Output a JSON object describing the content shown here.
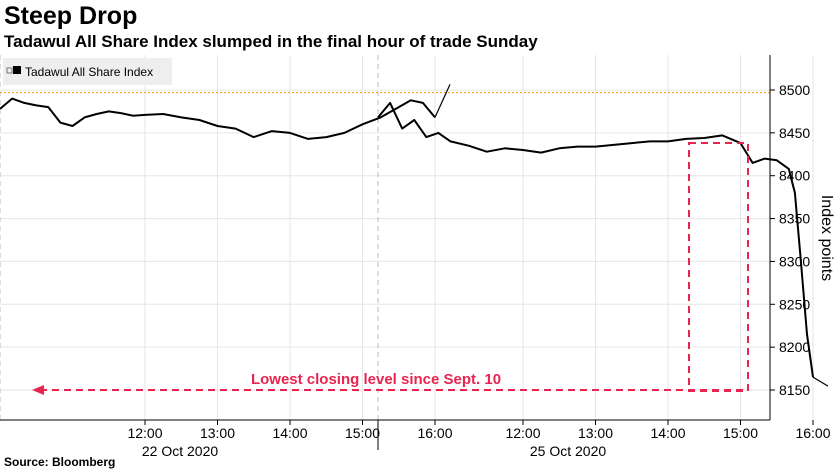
{
  "chart_data": {
    "type": "line",
    "title": "Steep Drop",
    "subtitle": "Tadawul All Share Index slumped in the final hour of trade Sunday",
    "source": "Source: Bloomberg",
    "ylabel": "Index points",
    "ylim": [
      8140,
      8525
    ],
    "yticks": [
      8150,
      8200,
      8250,
      8300,
      8350,
      8400,
      8450,
      8500
    ],
    "reference_line": {
      "value": 8497,
      "color": "#f5a623"
    },
    "legend": {
      "label": "Tadawul All Share Index",
      "position": "top-left"
    },
    "session_labels": [
      "22 Oct 2020",
      "25 Oct 2020"
    ],
    "time_ticks": [
      "12:00",
      "13:00",
      "14:00",
      "15:00",
      "16:00"
    ],
    "series": [
      {
        "name": "Tadawul All Share Index",
        "color": "#000000",
        "sessions": [
          {
            "x": [
              "10:00",
              "10:10",
              "10:20",
              "10:30",
              "10:40",
              "10:50",
              "11:00",
              "11:10",
              "11:20",
              "11:30",
              "11:40",
              "11:50",
              "12:00",
              "12:15",
              "12:30",
              "12:45",
              "13:00",
              "13:15",
              "13:30",
              "13:45",
              "14:00",
              "14:15",
              "14:30",
              "14:45",
              "15:00",
              "15:15",
              "15:30",
              "15:40",
              "15:50",
              "16:00"
            ],
            "values": [
              8478,
              8490,
              8485,
              8482,
              8480,
              8462,
              8458,
              8468,
              8472,
              8475,
              8473,
              8470,
              8471,
              8472,
              8468,
              8465,
              8458,
              8455,
              8445,
              8452,
              8450,
              8443,
              8445,
              8450,
              8460,
              8468,
              8480,
              8488,
              8485,
              8468
            ]
          },
          {
            "x": [
              "10:00",
              "10:10",
              "10:20",
              "10:30",
              "10:40",
              "10:50",
              "11:00",
              "11:15",
              "11:30",
              "11:45",
              "12:00",
              "12:15",
              "12:30",
              "12:45",
              "13:00",
              "13:15",
              "13:30",
              "13:45",
              "14:00",
              "14:15",
              "14:30",
              "14:45",
              "15:00",
              "15:10",
              "15:20",
              "15:30",
              "15:40",
              "15:45",
              "15:50",
              "15:55",
              "16:00"
            ],
            "values": [
              8468,
              8485,
              8455,
              8465,
              8445,
              8450,
              8440,
              8435,
              8428,
              8432,
              8430,
              8427,
              8432,
              8434,
              8434,
              8436,
              8438,
              8440,
              8440,
              8443,
              8444,
              8447,
              8438,
              8415,
              8420,
              8418,
              8408,
              8380,
              8300,
              8215,
              8165
            ]
          }
        ]
      }
    ],
    "annotation": {
      "text": "Lowest closing level since Sept. 10",
      "value": 8150,
      "color": "#e8254f"
    }
  }
}
